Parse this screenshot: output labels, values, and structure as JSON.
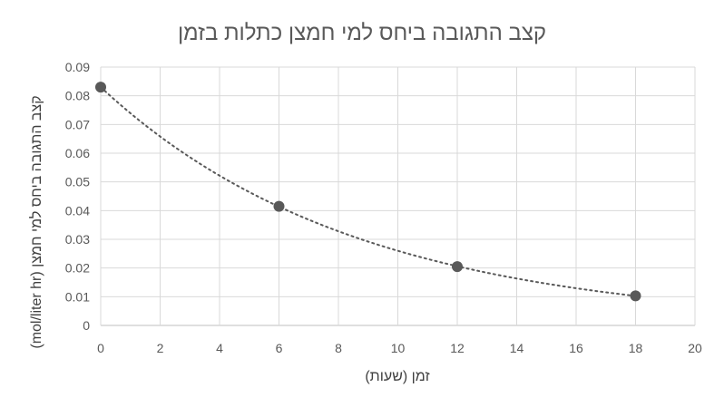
{
  "chart_data": {
    "type": "scatter",
    "title": "קצב התגובה ביחס למי חמצן כתלות בזמן",
    "xlabel": "זמן (שעות)",
    "ylabel": "קצב התגובה ביחס למי חמצן (mol/liter hr)",
    "xlim": [
      0,
      20
    ],
    "ylim": [
      0,
      0.09
    ],
    "x_ticks": [
      "0",
      "2",
      "4",
      "6",
      "8",
      "10",
      "12",
      "14",
      "16",
      "18",
      "20"
    ],
    "y_ticks": [
      "0",
      "0.01",
      "0.02",
      "0.03",
      "0.04",
      "0.05",
      "0.06",
      "0.07",
      "0.08",
      "0.09"
    ],
    "grid": true,
    "legend": "none",
    "series": [
      {
        "points": [
          {
            "x": 0,
            "y": 0.083
          },
          {
            "x": 6,
            "y": 0.0415
          },
          {
            "x": 12,
            "y": 0.0205
          },
          {
            "x": 18,
            "y": 0.0103
          }
        ],
        "color": "#595959",
        "trendline": "exponential",
        "trendline_style": "dotted"
      }
    ]
  }
}
